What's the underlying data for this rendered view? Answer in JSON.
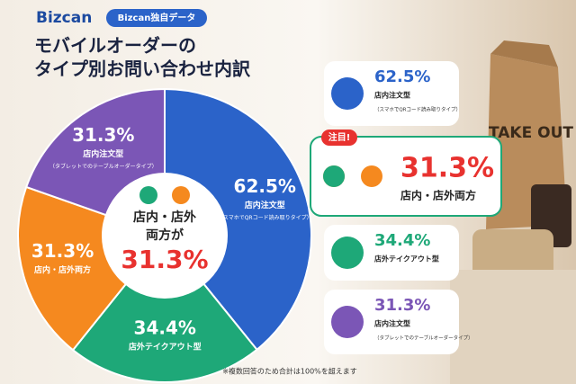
{
  "brand": "Bizcan",
  "tag": "Bizcan独自データ",
  "photo_text": "TAKE OUT",
  "chart_data": {
    "type": "pie",
    "title_lines": [
      "モバイルオーダーの",
      "タイプ別お問い合わせ内訳"
    ],
    "categories": [
      "店内注文型",
      "店外テイクアウト型",
      "店内・店外両方",
      "店内注文型"
    ],
    "subtitles": [
      "（スマホでQRコード読み取りタイプ）",
      null,
      null,
      "（タブレットでのテーブルオーダータイプ）"
    ],
    "values": [
      62.5,
      34.4,
      31.3,
      31.3
    ],
    "value_labels": [
      "62.5%",
      "34.4%",
      "31.3%",
      "31.3%"
    ],
    "colors": [
      "#2b63c9",
      "#1ea878",
      "#f5891f",
      "#7b56b6"
    ],
    "center_lines": [
      "店内・店外",
      "両方が"
    ],
    "highlight_badge": "注目!",
    "footnote": "※複数回答のため合計は100%を超えます"
  }
}
